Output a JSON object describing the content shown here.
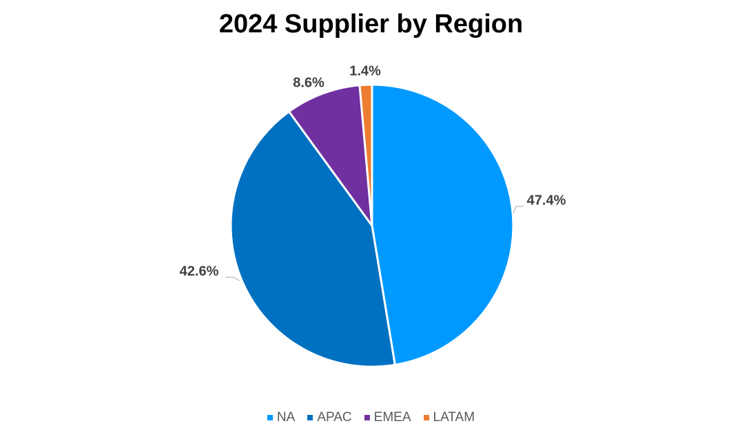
{
  "chart_data": {
    "type": "pie",
    "title": "2024 Supplier by Region",
    "categories": [
      "NA",
      "APAC",
      "EMEA",
      "LATAM"
    ],
    "values": [
      47.4,
      42.6,
      8.6,
      1.4
    ],
    "labels": [
      "47.4%",
      "42.6%",
      "8.6%",
      "1.4%"
    ],
    "colors": [
      "#0099FF",
      "#0070C0",
      "#7030A0",
      "#ED7D31"
    ],
    "legend_position": "bottom",
    "start_angle": "12 o'clock, clockwise"
  }
}
